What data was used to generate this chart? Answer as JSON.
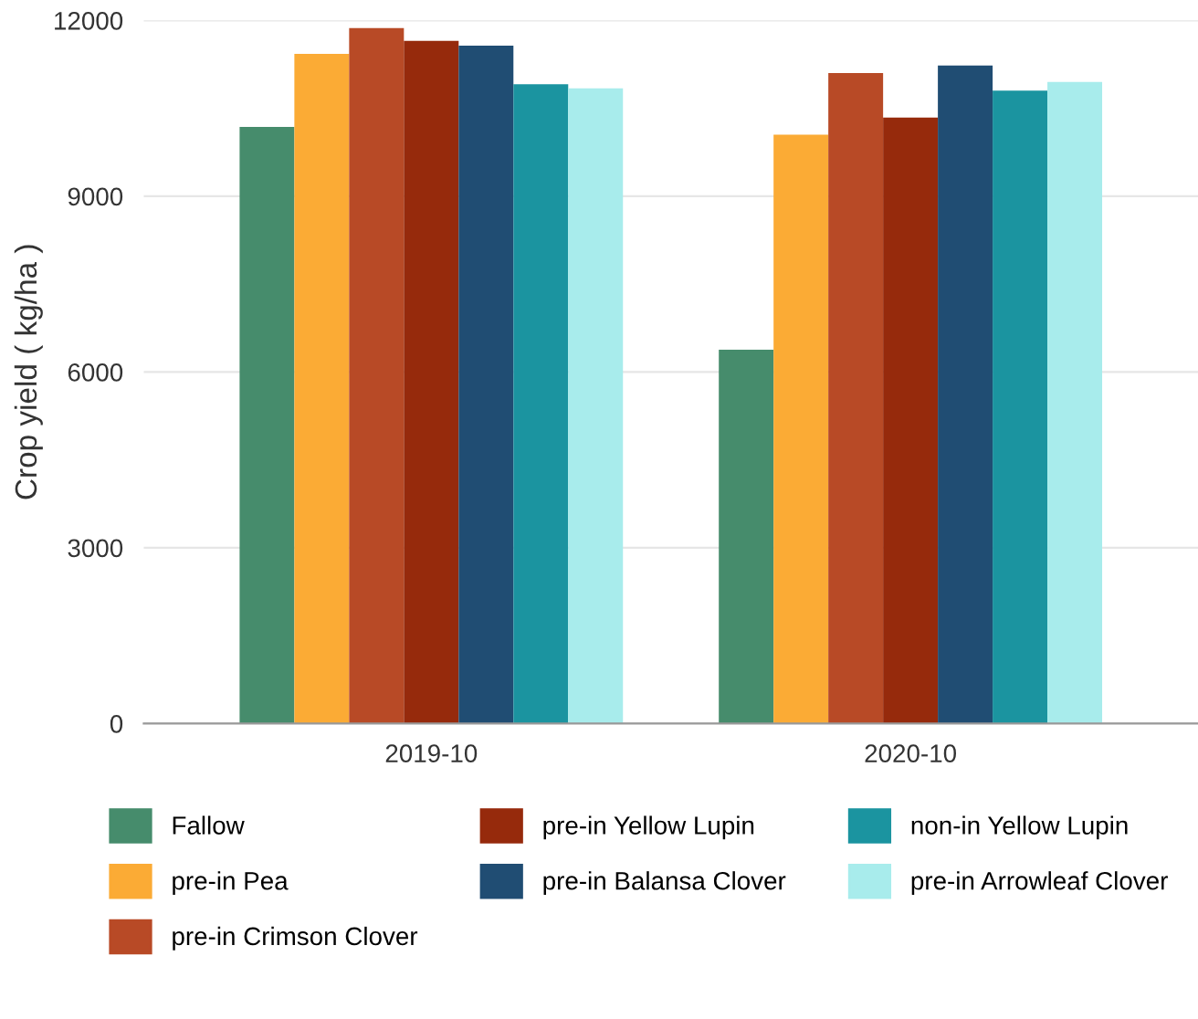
{
  "chart_data": {
    "type": "bar",
    "ylabel": "Crop yield ( kg/ha )",
    "categories": [
      "2019-10",
      "2020-10"
    ],
    "series": [
      {
        "name": "Fallow",
        "color": "#468c6c",
        "values": [
          10180,
          6380
        ]
      },
      {
        "name": "pre-in Pea",
        "color": "#fbab35",
        "values": [
          11430,
          10050
        ]
      },
      {
        "name": "pre-in Crimson Clover",
        "color": "#b84a26",
        "values": [
          11870,
          11100
        ]
      },
      {
        "name": "pre-in Yellow Lupin",
        "color": "#962a0c",
        "values": [
          11650,
          10340
        ]
      },
      {
        "name": "pre-in Balansa Clover",
        "color": "#204d73",
        "values": [
          11570,
          11230
        ]
      },
      {
        "name": "non-in Yellow Lupin",
        "color": "#1b94a0",
        "values": [
          10910,
          10800
        ]
      },
      {
        "name": "pre-in Arrowleaf Clover",
        "color": "#a8ecec",
        "values": [
          10840,
          10950
        ]
      }
    ],
    "ylim": [
      0,
      12000
    ],
    "yticks": [
      0,
      3000,
      6000,
      9000,
      12000
    ],
    "grid": "y",
    "legend": "bottom"
  }
}
